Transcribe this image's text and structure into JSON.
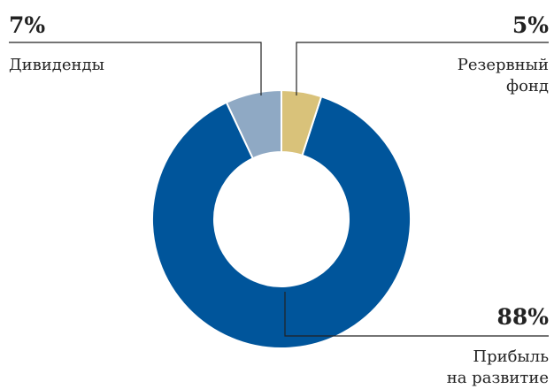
{
  "chart_data": {
    "type": "donut",
    "categories": [
      "Резервный\nфонд",
      "Прибыль\nна развитие",
      "Дивиденды"
    ],
    "values": [
      5,
      88,
      7
    ],
    "value_labels": [
      "5%",
      "88%",
      "7%"
    ],
    "colors": [
      "#d9c27a",
      "#00559b",
      "#8fa9c4"
    ]
  }
}
